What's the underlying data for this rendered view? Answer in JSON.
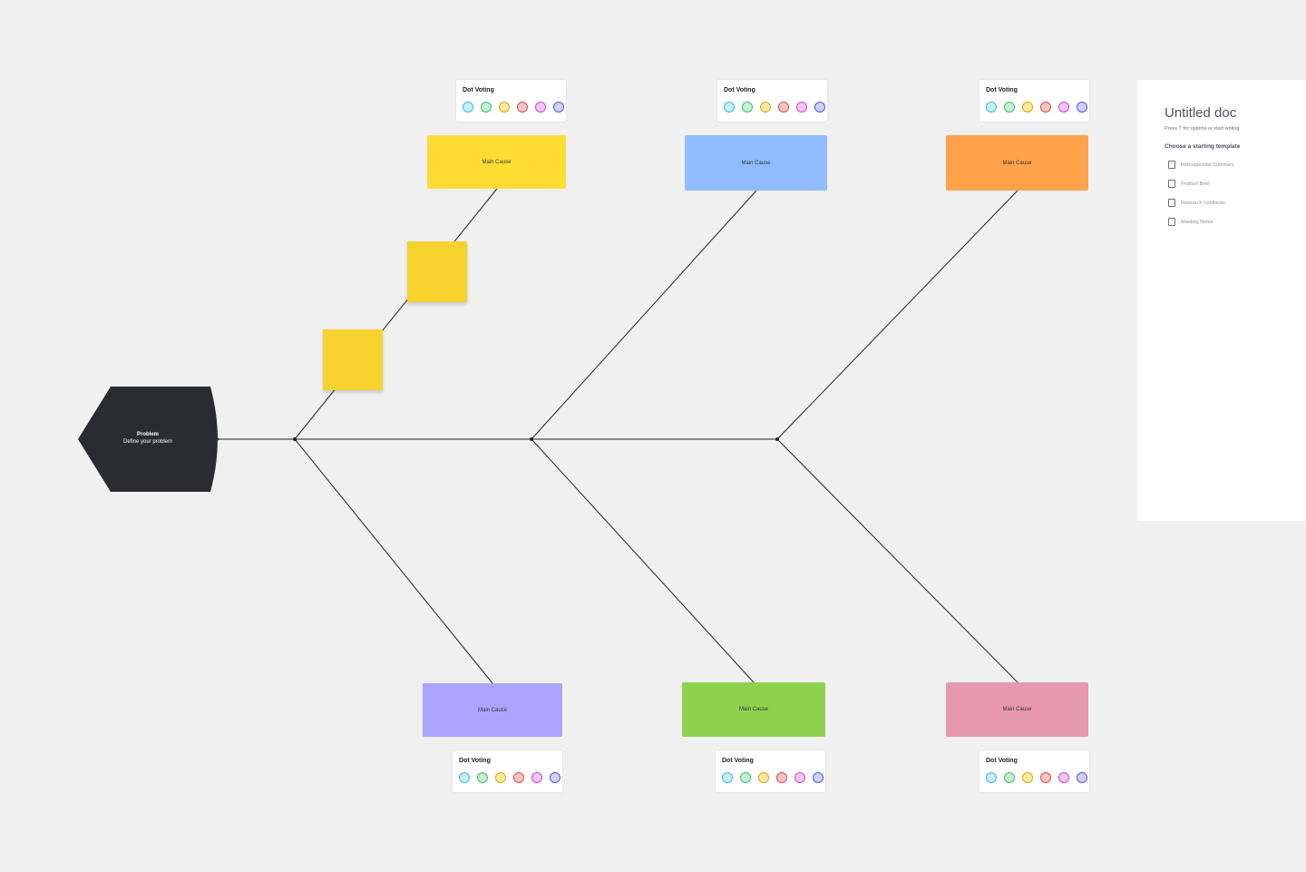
{
  "problem": {
    "title": "Problem",
    "subtitle": "Define your problem"
  },
  "dot_voting": {
    "label": "Dot Voting",
    "colors": [
      {
        "fill": "#c4effc",
        "stroke": "#46b5d6"
      },
      {
        "fill": "#c6f2d2",
        "stroke": "#3fbb6a"
      },
      {
        "fill": "#fdeaa0",
        "stroke": "#d4a80c"
      },
      {
        "fill": "#fbc6c6",
        "stroke": "#d94a4a"
      },
      {
        "fill": "#f6c7f5",
        "stroke": "#cc44cc"
      },
      {
        "fill": "#cfd0fb",
        "stroke": "#5555dd"
      }
    ]
  },
  "causes": [
    {
      "label": "Main Cause",
      "color": "#ffdd33"
    },
    {
      "label": "Main Cause",
      "color": "#8fbcff"
    },
    {
      "label": "Main Cause",
      "color": "#ffa24a"
    },
    {
      "label": "Main Cause",
      "color": "#aba3fc"
    },
    {
      "label": "Main Cause",
      "color": "#8fd14f"
    },
    {
      "label": "Main Cause",
      "color": "#e598b0"
    }
  ],
  "doc": {
    "title": "Untitled doc",
    "hint": "Press '/' for options or start writing",
    "choose": "Choose a starting template",
    "templates": [
      "Retrospective Summary",
      "Product Brief",
      "Research Synthesis",
      "Meeting Notes"
    ]
  }
}
